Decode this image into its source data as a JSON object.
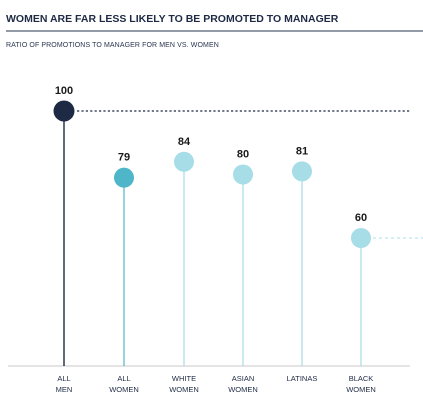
{
  "header": {
    "title": "WOMEN ARE FAR LESS LIKELY TO BE PROMOTED TO MANAGER",
    "subtitle": "RATIO OF PROMOTIONS TO MANAGER FOR MEN VS. WOMEN"
  },
  "colors": {
    "title_rule": "#2a3550",
    "men": "#1e2a44",
    "all_women": "#4fb6c9",
    "other_women": "#a6dde6",
    "stem_men": "#1e2a44",
    "stem_all_women": "#4fb6c9",
    "stem_other": "#a6dde6",
    "baseline": "#c8c8c8",
    "reference_line": "#1e2a44",
    "reference_line_light": "#bde5eb"
  },
  "chart_data": {
    "type": "lollipop",
    "title": "WOMEN ARE FAR LESS LIKELY TO BE PROMOTED TO MANAGER",
    "subtitle": "RATIO OF PROMOTIONS TO MANAGER FOR MEN VS. WOMEN",
    "categories": [
      [
        "ALL",
        "MEN"
      ],
      [
        "ALL",
        "WOMEN"
      ],
      [
        "WHITE",
        "WOMEN"
      ],
      [
        "ASIAN",
        "WOMEN"
      ],
      [
        "LATINAS"
      ],
      [
        "BLACK",
        "WOMEN"
      ]
    ],
    "values": [
      100,
      79,
      84,
      80,
      81,
      60
    ],
    "value_labels": [
      "100",
      "79",
      "84",
      "80",
      "81",
      "60"
    ],
    "ylim": [
      0,
      100
    ],
    "xlabel": "",
    "ylabel": "",
    "grid": false,
    "reference_lines": [
      {
        "value": 100,
        "style": "dotted",
        "color": "#1e2a44"
      },
      {
        "value": 60,
        "style": "dashed",
        "color": "#bde5eb"
      }
    ]
  }
}
